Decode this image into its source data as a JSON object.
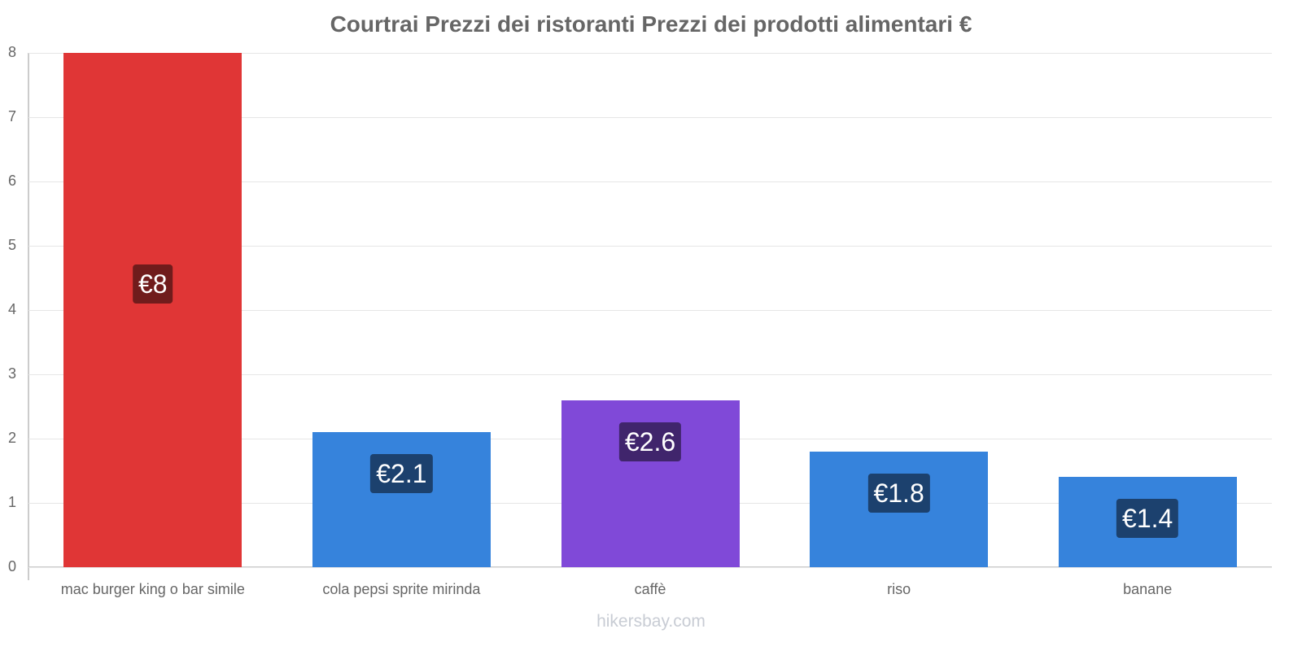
{
  "chart_data": {
    "type": "bar",
    "title": "Courtrai Prezzi dei ristoranti Prezzi dei prodotti alimentari €",
    "xlabel": "",
    "ylabel": "",
    "ylim": [
      0,
      8
    ],
    "yticks": [
      "0",
      "1",
      "2",
      "3",
      "4",
      "5",
      "6",
      "7",
      "8"
    ],
    "grid": true,
    "legend": null,
    "categories": [
      "mac burger king o bar simile",
      "cola pepsi sprite mirinda",
      "caffè",
      "riso",
      "banane"
    ],
    "values": [
      8,
      2.1,
      2.6,
      1.8,
      1.4
    ],
    "data_labels": [
      "€8",
      "€2.1",
      "€2.6",
      "€1.8",
      "€1.4"
    ],
    "bar_colors": [
      "#e03636",
      "#3683dc",
      "#8049d8",
      "#3683dc",
      "#3683dc"
    ],
    "label_bg_colors": [
      "#701c1c",
      "#1c416e",
      "#40256c",
      "#1c416e",
      "#1c416e"
    ]
  },
  "watermark": "hikersbay.com"
}
